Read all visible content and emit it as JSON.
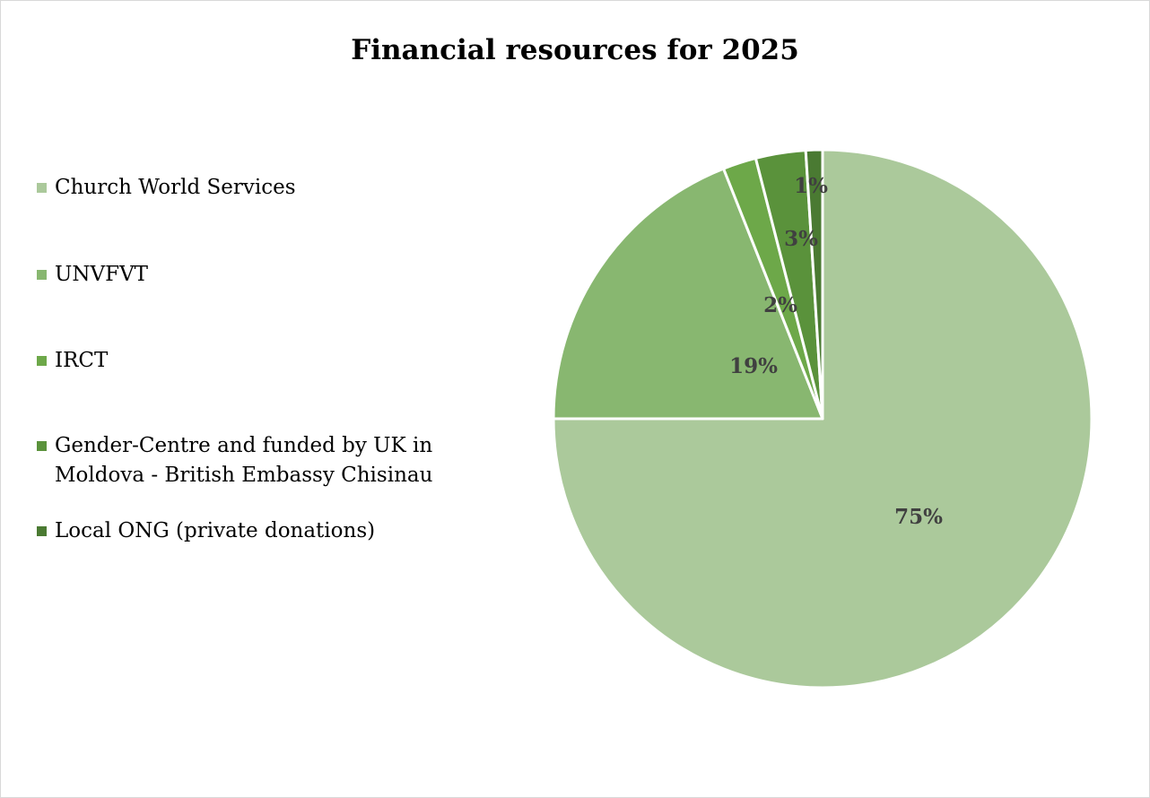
{
  "chart_data": {
    "type": "pie",
    "title": "Financial resources for 2025",
    "legend_position": "left",
    "start_angle": "top, clockwise",
    "slices": [
      {
        "name": "Church World Services",
        "value": 75,
        "label": "75%",
        "color": "#abc99b"
      },
      {
        "name": "UNVFVT",
        "value": 19,
        "label": "19%",
        "color": "#88b770"
      },
      {
        "name": "IRCT",
        "value": 2,
        "label": "2%",
        "color": "#6da849"
      },
      {
        "name": "Gender-Centre and funded by UK in Moldova - British Embassy Chisinau",
        "value": 3,
        "label": "3%",
        "color": "#5a923b"
      },
      {
        "name": "Local ONG (private donations)",
        "value": 1,
        "label": "1%",
        "color": "#4a7a32"
      }
    ]
  }
}
